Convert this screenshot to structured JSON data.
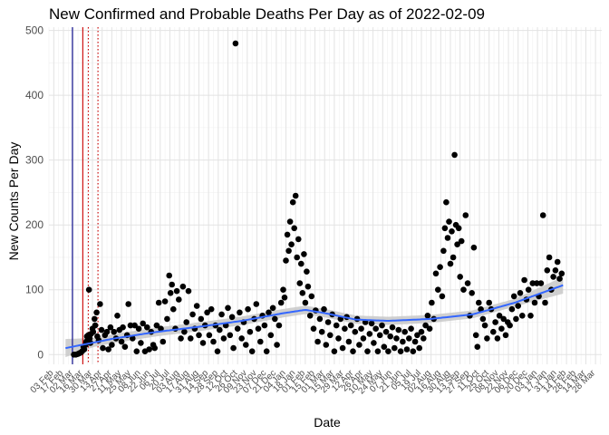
{
  "chart_data": {
    "type": "scatter",
    "title": "New Confirmed and Probable Deaths Per Day as of 2022-02-09",
    "xlabel": "Date",
    "ylabel": "New Counts Per Day",
    "ylim": [
      -15,
      505
    ],
    "yticks": [
      0,
      100,
      200,
      300,
      400,
      500
    ],
    "xlim": [
      "2020-01-27",
      "2022-04-06"
    ],
    "xtick_interval_days": 14,
    "xtick_first": "2020-02-03",
    "xtick_last": "2022-03-28",
    "xtick_label_format": "DD Mon",
    "grid": true,
    "vlines": [
      {
        "date": "2020-03-01",
        "color": "#00008b",
        "style": "solid"
      },
      {
        "date": "2020-03-16",
        "color": "#cc0000",
        "style": "solid"
      },
      {
        "date": "2020-03-24",
        "color": "#cc0000",
        "style": "dotted"
      },
      {
        "date": "2020-04-07",
        "color": "#cc0000",
        "style": "dotted"
      }
    ],
    "points_color": "#000000",
    "smooth_color": "#3366ff",
    "ribbon_color": "#c8c8c8",
    "smooth": [
      {
        "date": "2020-02-20",
        "y": 10
      },
      {
        "date": "2020-05-01",
        "y": 25
      },
      {
        "date": "2020-07-01",
        "y": 35
      },
      {
        "date": "2020-09-01",
        "y": 43
      },
      {
        "date": "2020-11-01",
        "y": 52
      },
      {
        "date": "2021-01-01",
        "y": 64
      },
      {
        "date": "2021-02-01",
        "y": 69
      },
      {
        "date": "2021-03-01",
        "y": 64
      },
      {
        "date": "2021-04-15",
        "y": 54
      },
      {
        "date": "2021-06-01",
        "y": 52
      },
      {
        "date": "2021-08-01",
        "y": 55
      },
      {
        "date": "2021-10-01",
        "y": 62
      },
      {
        "date": "2021-12-01",
        "y": 80
      },
      {
        "date": "2022-02-09",
        "y": 107
      }
    ],
    "ribbon_halfwidth": [
      {
        "date": "2020-02-20",
        "hw": 14
      },
      {
        "date": "2020-04-01",
        "hw": 7
      },
      {
        "date": "2021-12-01",
        "hw": 6
      },
      {
        "date": "2022-02-09",
        "hw": 13
      }
    ],
    "points": [
      [
        "2020-03-03",
        0
      ],
      [
        "2020-03-06",
        0
      ],
      [
        "2020-03-09",
        1
      ],
      [
        "2020-03-11",
        2
      ],
      [
        "2020-03-13",
        3
      ],
      [
        "2020-03-15",
        5
      ],
      [
        "2020-03-17",
        12
      ],
      [
        "2020-03-18",
        8
      ],
      [
        "2020-03-20",
        15
      ],
      [
        "2020-03-21",
        20
      ],
      [
        "2020-03-22",
        28
      ],
      [
        "2020-03-24",
        30
      ],
      [
        "2020-03-25",
        100
      ],
      [
        "2020-03-26",
        25
      ],
      [
        "2020-03-27",
        18
      ],
      [
        "2020-03-28",
        32
      ],
      [
        "2020-03-30",
        40
      ],
      [
        "2020-03-31",
        35
      ],
      [
        "2020-04-02",
        55
      ],
      [
        "2020-04-03",
        45
      ],
      [
        "2020-04-05",
        65
      ],
      [
        "2020-04-06",
        28
      ],
      [
        "2020-04-08",
        22
      ],
      [
        "2020-04-10",
        78
      ],
      [
        "2020-04-12",
        38
      ],
      [
        "2020-04-14",
        10
      ],
      [
        "2020-04-17",
        30
      ],
      [
        "2020-04-20",
        35
      ],
      [
        "2020-04-22",
        8
      ],
      [
        "2020-04-25",
        42
      ],
      [
        "2020-04-27",
        15
      ],
      [
        "2020-04-30",
        35
      ],
      [
        "2020-05-03",
        25
      ],
      [
        "2020-05-05",
        60
      ],
      [
        "2020-05-08",
        38
      ],
      [
        "2020-05-11",
        20
      ],
      [
        "2020-05-13",
        42
      ],
      [
        "2020-05-16",
        12
      ],
      [
        "2020-05-19",
        30
      ],
      [
        "2020-05-21",
        78
      ],
      [
        "2020-05-24",
        45
      ],
      [
        "2020-05-27",
        25
      ],
      [
        "2020-05-30",
        45
      ],
      [
        "2020-06-02",
        5
      ],
      [
        "2020-06-05",
        40
      ],
      [
        "2020-06-08",
        18
      ],
      [
        "2020-06-11",
        48
      ],
      [
        "2020-06-14",
        5
      ],
      [
        "2020-06-17",
        42
      ],
      [
        "2020-06-20",
        8
      ],
      [
        "2020-06-23",
        35
      ],
      [
        "2020-06-26",
        15
      ],
      [
        "2020-06-28",
        10
      ],
      [
        "2020-07-01",
        45
      ],
      [
        "2020-07-04",
        80
      ],
      [
        "2020-07-07",
        40
      ],
      [
        "2020-07-10",
        20
      ],
      [
        "2020-07-13",
        82
      ],
      [
        "2020-07-16",
        55
      ],
      [
        "2020-07-19",
        122
      ],
      [
        "2020-07-21",
        95
      ],
      [
        "2020-07-23",
        108
      ],
      [
        "2020-07-25",
        70
      ],
      [
        "2020-07-28",
        40
      ],
      [
        "2020-07-30",
        98
      ],
      [
        "2020-08-02",
        85
      ],
      [
        "2020-08-05",
        25
      ],
      [
        "2020-08-08",
        105
      ],
      [
        "2020-08-10",
        35
      ],
      [
        "2020-08-13",
        50
      ],
      [
        "2020-08-16",
        98
      ],
      [
        "2020-08-19",
        25
      ],
      [
        "2020-08-22",
        62
      ],
      [
        "2020-08-25",
        40
      ],
      [
        "2020-08-28",
        75
      ],
      [
        "2020-08-31",
        30
      ],
      [
        "2020-09-03",
        55
      ],
      [
        "2020-09-06",
        18
      ],
      [
        "2020-09-09",
        45
      ],
      [
        "2020-09-12",
        65
      ],
      [
        "2020-09-15",
        30
      ],
      [
        "2020-09-18",
        70
      ],
      [
        "2020-09-21",
        20
      ],
      [
        "2020-09-24",
        45
      ],
      [
        "2020-09-27",
        5
      ],
      [
        "2020-09-30",
        38
      ],
      [
        "2020-10-03",
        62
      ],
      [
        "2020-10-06",
        25
      ],
      [
        "2020-10-09",
        45
      ],
      [
        "2020-10-12",
        72
      ],
      [
        "2020-10-15",
        30
      ],
      [
        "2020-10-18",
        58
      ],
      [
        "2020-10-20",
        10
      ],
      [
        "2020-10-23",
        480
      ],
      [
        "2020-10-26",
        40
      ],
      [
        "2020-10-29",
        65
      ],
      [
        "2020-11-01",
        25
      ],
      [
        "2020-11-04",
        50
      ],
      [
        "2020-11-07",
        15
      ],
      [
        "2020-11-10",
        70
      ],
      [
        "2020-11-13",
        35
      ],
      [
        "2020-11-16",
        5
      ],
      [
        "2020-11-19",
        55
      ],
      [
        "2020-11-22",
        78
      ],
      [
        "2020-11-25",
        40
      ],
      [
        "2020-11-28",
        20
      ],
      [
        "2020-12-01",
        60
      ],
      [
        "2020-12-04",
        45
      ],
      [
        "2020-12-07",
        5
      ],
      [
        "2020-12-10",
        65
      ],
      [
        "2020-12-13",
        30
      ],
      [
        "2020-12-16",
        72
      ],
      [
        "2020-12-19",
        55
      ],
      [
        "2020-12-22",
        15
      ],
      [
        "2020-12-25",
        45
      ],
      [
        "2020-12-28",
        80
      ],
      [
        "2020-12-31",
        100
      ],
      [
        "2021-01-02",
        88
      ],
      [
        "2021-01-04",
        145
      ],
      [
        "2021-01-06",
        185
      ],
      [
        "2021-01-08",
        160
      ],
      [
        "2021-01-10",
        205
      ],
      [
        "2021-01-12",
        170
      ],
      [
        "2021-01-14",
        235
      ],
      [
        "2021-01-16",
        195
      ],
      [
        "2021-01-18",
        245
      ],
      [
        "2021-01-20",
        150
      ],
      [
        "2021-01-22",
        178
      ],
      [
        "2021-01-24",
        110
      ],
      [
        "2021-01-26",
        140
      ],
      [
        "2021-01-28",
        95
      ],
      [
        "2021-01-30",
        155
      ],
      [
        "2021-02-01",
        80
      ],
      [
        "2021-02-03",
        128
      ],
      [
        "2021-02-05",
        105
      ],
      [
        "2021-02-08",
        60
      ],
      [
        "2021-02-10",
        90
      ],
      [
        "2021-02-13",
        40
      ],
      [
        "2021-02-16",
        68
      ],
      [
        "2021-02-19",
        20
      ],
      [
        "2021-02-22",
        55
      ],
      [
        "2021-02-25",
        35
      ],
      [
        "2021-02-28",
        70
      ],
      [
        "2021-03-03",
        15
      ],
      [
        "2021-03-06",
        50
      ],
      [
        "2021-03-09",
        30
      ],
      [
        "2021-03-12",
        62
      ],
      [
        "2021-03-15",
        5
      ],
      [
        "2021-03-18",
        45
      ],
      [
        "2021-03-21",
        25
      ],
      [
        "2021-03-24",
        55
      ],
      [
        "2021-03-27",
        10
      ],
      [
        "2021-03-30",
        40
      ],
      [
        "2021-04-02",
        58
      ],
      [
        "2021-04-05",
        20
      ],
      [
        "2021-04-08",
        45
      ],
      [
        "2021-04-11",
        5
      ],
      [
        "2021-04-14",
        35
      ],
      [
        "2021-04-17",
        55
      ],
      [
        "2021-04-20",
        15
      ],
      [
        "2021-04-23",
        40
      ],
      [
        "2021-04-26",
        25
      ],
      [
        "2021-04-29",
        50
      ],
      [
        "2021-05-02",
        5
      ],
      [
        "2021-05-05",
        32
      ],
      [
        "2021-05-08",
        48
      ],
      [
        "2021-05-11",
        18
      ],
      [
        "2021-05-14",
        40
      ],
      [
        "2021-05-17",
        5
      ],
      [
        "2021-05-20",
        30
      ],
      [
        "2021-05-23",
        45
      ],
      [
        "2021-05-26",
        12
      ],
      [
        "2021-05-29",
        35
      ],
      [
        "2021-06-01",
        5
      ],
      [
        "2021-06-04",
        28
      ],
      [
        "2021-06-07",
        42
      ],
      [
        "2021-06-10",
        10
      ],
      [
        "2021-06-13",
        25
      ],
      [
        "2021-06-16",
        38
      ],
      [
        "2021-06-19",
        5
      ],
      [
        "2021-06-22",
        20
      ],
      [
        "2021-06-25",
        35
      ],
      [
        "2021-06-28",
        8
      ],
      [
        "2021-07-01",
        25
      ],
      [
        "2021-07-04",
        40
      ],
      [
        "2021-07-07",
        5
      ],
      [
        "2021-07-10",
        20
      ],
      [
        "2021-07-13",
        30
      ],
      [
        "2021-07-16",
        10
      ],
      [
        "2021-07-19",
        35
      ],
      [
        "2021-07-22",
        25
      ],
      [
        "2021-07-25",
        45
      ],
      [
        "2021-07-28",
        60
      ],
      [
        "2021-07-31",
        40
      ],
      [
        "2021-08-03",
        80
      ],
      [
        "2021-08-06",
        55
      ],
      [
        "2021-08-09",
        125
      ],
      [
        "2021-08-12",
        100
      ],
      [
        "2021-08-15",
        135
      ],
      [
        "2021-08-18",
        90
      ],
      [
        "2021-08-20",
        160
      ],
      [
        "2021-08-22",
        195
      ],
      [
        "2021-08-24",
        235
      ],
      [
        "2021-08-26",
        180
      ],
      [
        "2021-08-28",
        205
      ],
      [
        "2021-08-30",
        140
      ],
      [
        "2021-09-01",
        190
      ],
      [
        "2021-09-03",
        150
      ],
      [
        "2021-09-05",
        308
      ],
      [
        "2021-09-07",
        200
      ],
      [
        "2021-09-09",
        170
      ],
      [
        "2021-09-11",
        195
      ],
      [
        "2021-09-13",
        120
      ],
      [
        "2021-09-15",
        175
      ],
      [
        "2021-09-18",
        100
      ],
      [
        "2021-09-21",
        215
      ],
      [
        "2021-09-24",
        110
      ],
      [
        "2021-09-27",
        60
      ],
      [
        "2021-09-30",
        95
      ],
      [
        "2021-10-03",
        165
      ],
      [
        "2021-10-06",
        30
      ],
      [
        "2021-10-08",
        12
      ],
      [
        "2021-10-10",
        80
      ],
      [
        "2021-10-13",
        70
      ],
      [
        "2021-10-16",
        55
      ],
      [
        "2021-10-19",
        45
      ],
      [
        "2021-10-22",
        25
      ],
      [
        "2021-10-25",
        80
      ],
      [
        "2021-10-28",
        70
      ],
      [
        "2021-10-31",
        35
      ],
      [
        "2021-11-03",
        50
      ],
      [
        "2021-11-06",
        25
      ],
      [
        "2021-11-09",
        60
      ],
      [
        "2021-11-12",
        40
      ],
      [
        "2021-11-15",
        55
      ],
      [
        "2021-11-18",
        30
      ],
      [
        "2021-11-21",
        50
      ],
      [
        "2021-11-24",
        45
      ],
      [
        "2021-11-27",
        70
      ],
      [
        "2021-11-30",
        90
      ],
      [
        "2021-12-03",
        55
      ],
      [
        "2021-12-06",
        75
      ],
      [
        "2021-12-09",
        95
      ],
      [
        "2021-12-12",
        60
      ],
      [
        "2021-12-15",
        115
      ],
      [
        "2021-12-18",
        85
      ],
      [
        "2021-12-21",
        100
      ],
      [
        "2021-12-24",
        60
      ],
      [
        "2021-12-27",
        110
      ],
      [
        "2021-12-30",
        80
      ],
      [
        "2022-01-02",
        110
      ],
      [
        "2022-01-05",
        90
      ],
      [
        "2022-01-08",
        110
      ],
      [
        "2022-01-11",
        215
      ],
      [
        "2022-01-14",
        80
      ],
      [
        "2022-01-17",
        130
      ],
      [
        "2022-01-20",
        150
      ],
      [
        "2022-01-23",
        100
      ],
      [
        "2022-01-26",
        120
      ],
      [
        "2022-01-29",
        130
      ],
      [
        "2022-02-01",
        143
      ],
      [
        "2022-02-04",
        117
      ],
      [
        "2022-02-07",
        125
      ]
    ]
  }
}
